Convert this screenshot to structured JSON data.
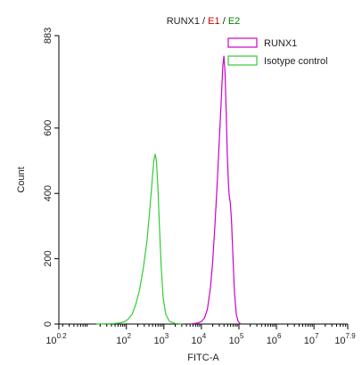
{
  "chart_data": {
    "type": "line",
    "title_parts": [
      {
        "text": "RUNX1",
        "color": "#222222"
      },
      {
        "text": " / ",
        "color": "#222222"
      },
      {
        "text": "E1",
        "color": "#cc0000"
      },
      {
        "text": " / ",
        "color": "#222222"
      },
      {
        "text": "E2",
        "color": "#008000"
      }
    ],
    "xlabel": "FITC-A",
    "ylabel": "Count",
    "x_scale": "log10",
    "xlim": [
      0.2,
      7.9
    ],
    "ylim": [
      0,
      883
    ],
    "x_ticks": [
      {
        "exp": 0.2,
        "base": "10",
        "sup": "0.2"
      },
      {
        "exp": 2,
        "base": "10",
        "sup": "2"
      },
      {
        "exp": 3,
        "base": "10",
        "sup": "3"
      },
      {
        "exp": 4,
        "base": "10",
        "sup": "4"
      },
      {
        "exp": 5,
        "base": "10",
        "sup": "5"
      },
      {
        "exp": 6,
        "base": "10",
        "sup": "6"
      },
      {
        "exp": 7,
        "base": "10",
        "sup": "7"
      },
      {
        "exp": 7.9,
        "base": "10",
        "sup": "7.9"
      }
    ],
    "y_ticks": [
      0,
      200,
      400,
      600,
      883
    ],
    "grid": false,
    "legend_position": "top-right",
    "series": [
      {
        "name": "RUNX1",
        "color": "#cc00cc",
        "points": [
          [
            3.7,
            0
          ],
          [
            3.9,
            3
          ],
          [
            4.0,
            8
          ],
          [
            4.08,
            18
          ],
          [
            4.16,
            45
          ],
          [
            4.24,
            110
          ],
          [
            4.3,
            190
          ],
          [
            4.36,
            300
          ],
          [
            4.42,
            430
          ],
          [
            4.48,
            570
          ],
          [
            4.53,
            690
          ],
          [
            4.57,
            790
          ],
          [
            4.6,
            820
          ],
          [
            4.63,
            770
          ],
          [
            4.66,
            650
          ],
          [
            4.69,
            520
          ],
          [
            4.72,
            430
          ],
          [
            4.74,
            395
          ],
          [
            4.77,
            370
          ],
          [
            4.8,
            320
          ],
          [
            4.84,
            210
          ],
          [
            4.88,
            100
          ],
          [
            4.93,
            30
          ],
          [
            4.98,
            8
          ],
          [
            5.05,
            0
          ]
        ]
      },
      {
        "name": "Isotype control",
        "color": "#33cc33",
        "points": [
          [
            1.2,
            0
          ],
          [
            1.6,
            1
          ],
          [
            1.8,
            3
          ],
          [
            1.95,
            7
          ],
          [
            2.05,
            15
          ],
          [
            2.15,
            30
          ],
          [
            2.25,
            60
          ],
          [
            2.35,
            105
          ],
          [
            2.45,
            170
          ],
          [
            2.55,
            255
          ],
          [
            2.62,
            345
          ],
          [
            2.68,
            430
          ],
          [
            2.73,
            500
          ],
          [
            2.77,
            520
          ],
          [
            2.8,
            500
          ],
          [
            2.84,
            420
          ],
          [
            2.88,
            300
          ],
          [
            2.93,
            170
          ],
          [
            2.98,
            80
          ],
          [
            3.05,
            30
          ],
          [
            3.15,
            8
          ],
          [
            3.3,
            2
          ],
          [
            3.5,
            0
          ]
        ]
      }
    ]
  }
}
